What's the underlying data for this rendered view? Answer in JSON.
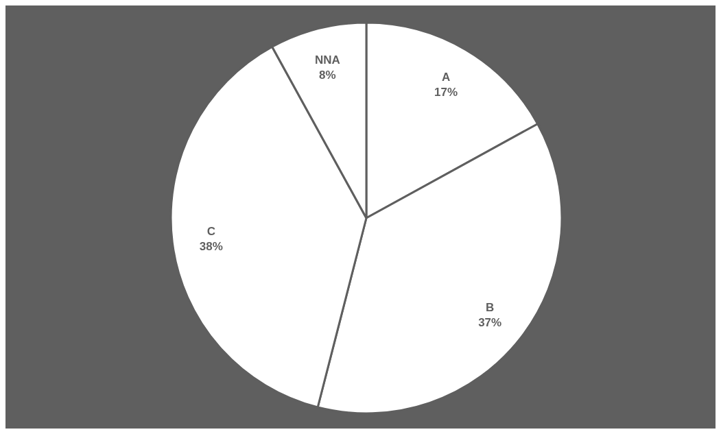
{
  "chart_data": {
    "type": "pie",
    "categories": [
      "A",
      "B",
      "C",
      "NNA"
    ],
    "values": [
      17,
      37,
      38,
      8
    ],
    "colors": [
      "#ffffff",
      "#ffffff",
      "#ffffff",
      "#ffffff"
    ],
    "value_labels": [
      "17%",
      "37%",
      "38%",
      "8%"
    ]
  }
}
